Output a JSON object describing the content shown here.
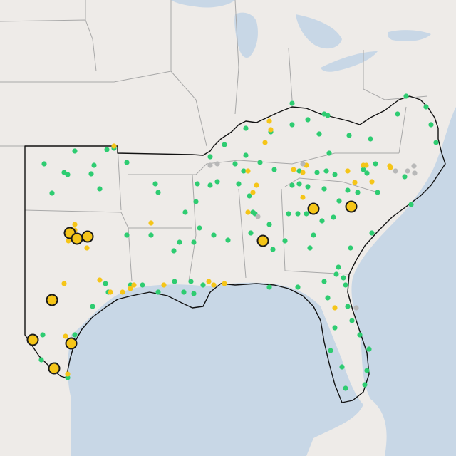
{
  "map": {
    "colors": {
      "land": "#eeebe8",
      "water": "#c8d7e6",
      "state_border": "#a8a8a8",
      "region_outline": "#111111",
      "green_marker": "#2ecc71",
      "yellow_marker": "#f5c518",
      "gray_marker": "#b8b8b8",
      "large_marker_fill": "#f5c518",
      "large_marker_stroke": "#1a1a1a"
    },
    "marker_categories": [
      "green",
      "yellow",
      "gray",
      "large-yellow"
    ]
  }
}
